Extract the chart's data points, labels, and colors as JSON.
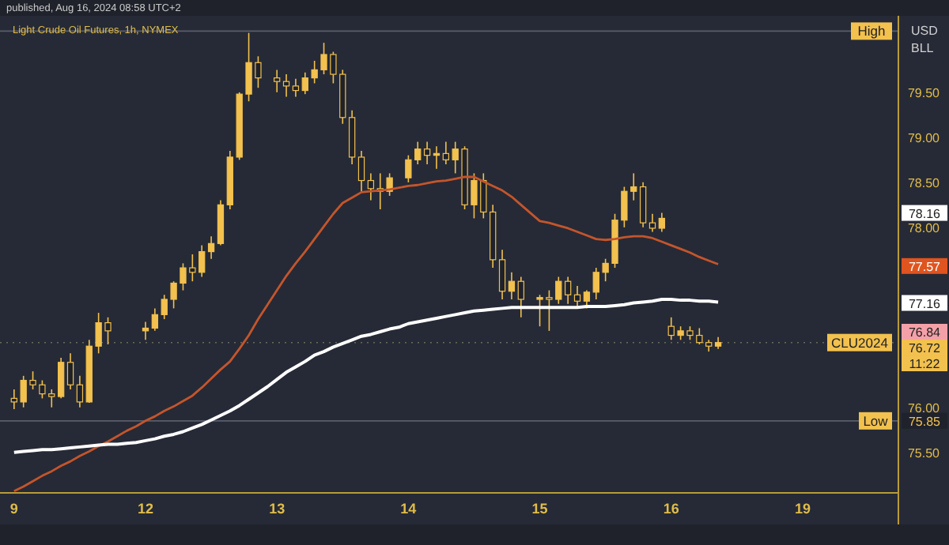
{
  "chart_data": {
    "type": "candlestick",
    "title": "Light Crude Oil Futures, 1h, NYMEX",
    "annotations": [
      "published, Aug 16, 2024 08:58 UTC+2",
      "USD",
      "BLL",
      {
        "text": "78.16",
        "y": 78.16
      },
      {
        "text": "77.57",
        "y": 77.57
      },
      {
        "text": "77.16",
        "y": 77.16
      },
      {
        "text": "76.84",
        "y": 76.84
      },
      "76.72",
      "11:22",
      {
        "text": "75.85",
        "y": 75.85
      }
    ],
    "categories": [
      "9",
      null,
      null,
      null,
      null,
      null,
      null,
      null,
      null,
      null,
      null,
      null,
      null,
      null,
      "12",
      null,
      null,
      null,
      null,
      null,
      null,
      null,
      null,
      null,
      null,
      null,
      null,
      null,
      "13",
      null,
      null,
      null,
      null,
      null,
      null,
      null,
      null,
      null,
      null,
      null,
      null,
      null,
      "14",
      null,
      null,
      null,
      null,
      null,
      null,
      null,
      null,
      null,
      null,
      null,
      null,
      null,
      "15",
      null,
      null,
      null,
      null,
      null,
      null,
      null,
      null,
      null,
      null,
      null,
      null,
      null,
      "16",
      null,
      null,
      null,
      null,
      null,
      null,
      null,
      null,
      null,
      null,
      null,
      null,
      null,
      "19",
      null,
      null,
      null,
      null,
      null,
      null,
      null,
      null,
      null,
      null
    ],
    "ylim": [
      75.05,
      80.35
    ],
    "yticks": [
      {
        "value": 75.5,
        "label": "75.50"
      },
      {
        "value": 76,
        "label": "76.00"
      },
      {
        "value": 78,
        "label": "78.00"
      },
      {
        "value": 78.5,
        "label": "78.50"
      },
      {
        "value": 79,
        "label": "79.00"
      },
      {
        "value": 79.5,
        "label": "79.50"
      }
    ],
    "ref_lines": [
      {
        "axis": "y",
        "value": 80.18,
        "label": "High",
        "color": "#5a5e6a"
      },
      {
        "axis": "y",
        "value": 75.85,
        "label": "Low",
        "color": "#5a5e6a"
      },
      {
        "axis": "y",
        "value": 76.72,
        "label": "CLU2024",
        "color": "#6a6a5a",
        "line_style": "dotted"
      }
    ],
    "series": [
      {
        "color": "#f2c14e",
        "ohlc": [
          [
            76.1,
            76.2,
            75.98,
            76.06
          ],
          [
            76.06,
            76.35,
            76.0,
            76.3
          ],
          [
            76.3,
            76.4,
            76.2,
            76.25
          ],
          [
            76.25,
            76.3,
            76.1,
            76.15
          ],
          [
            76.15,
            76.2,
            76.0,
            76.12
          ],
          [
            76.12,
            76.55,
            76.1,
            76.5
          ],
          [
            76.5,
            76.6,
            76.2,
            76.25
          ],
          [
            76.25,
            76.35,
            76.0,
            76.06
          ],
          [
            76.06,
            76.75,
            76.05,
            76.68
          ],
          [
            76.68,
            77.05,
            76.6,
            76.94
          ],
          [
            76.94,
            77.0,
            76.7,
            76.85
          ],
          null,
          null,
          null,
          [
            76.85,
            76.95,
            76.75,
            76.88
          ],
          [
            76.88,
            77.1,
            76.85,
            77.03
          ],
          [
            77.03,
            77.25,
            76.98,
            77.2
          ],
          [
            77.2,
            77.4,
            77.1,
            77.38
          ],
          [
            77.38,
            77.6,
            77.3,
            77.55
          ],
          [
            77.55,
            77.7,
            77.4,
            77.5
          ],
          [
            77.5,
            77.8,
            77.45,
            77.73
          ],
          [
            77.73,
            77.9,
            77.65,
            77.82
          ],
          [
            77.82,
            78.3,
            77.8,
            78.25
          ],
          [
            78.25,
            78.85,
            78.2,
            78.78
          ],
          [
            78.78,
            79.5,
            78.75,
            79.48
          ],
          [
            79.48,
            80.16,
            79.4,
            79.83
          ],
          [
            79.83,
            79.9,
            79.55,
            79.66
          ],
          null,
          [
            79.66,
            79.75,
            79.5,
            79.62
          ],
          [
            79.62,
            79.7,
            79.45,
            79.57
          ],
          [
            79.57,
            79.65,
            79.45,
            79.52
          ],
          [
            79.52,
            79.72,
            79.48,
            79.66
          ],
          [
            79.66,
            79.85,
            79.6,
            79.75
          ],
          [
            79.75,
            80.05,
            79.7,
            79.92
          ],
          [
            79.92,
            79.95,
            79.6,
            79.7
          ],
          [
            79.7,
            79.75,
            79.15,
            79.22
          ],
          [
            79.22,
            79.3,
            78.7,
            78.78
          ],
          [
            78.78,
            78.85,
            78.4,
            78.52
          ],
          [
            78.52,
            78.6,
            78.3,
            78.43
          ],
          [
            78.43,
            78.6,
            78.2,
            78.4
          ],
          [
            78.4,
            78.6,
            78.35,
            78.55
          ],
          null,
          [
            78.55,
            78.8,
            78.5,
            78.75
          ],
          [
            78.75,
            78.95,
            78.7,
            78.87
          ],
          [
            78.87,
            78.95,
            78.7,
            78.8
          ],
          [
            78.8,
            78.9,
            78.65,
            78.82
          ],
          [
            78.82,
            78.95,
            78.7,
            78.75
          ],
          [
            78.75,
            78.95,
            78.6,
            78.87
          ],
          [
            78.87,
            78.9,
            78.2,
            78.25
          ],
          [
            78.25,
            78.6,
            78.1,
            78.52
          ],
          [
            78.52,
            78.6,
            78.1,
            78.17
          ],
          [
            78.17,
            78.25,
            77.55,
            77.64
          ],
          [
            77.64,
            77.75,
            77.2,
            77.29
          ],
          [
            77.29,
            77.5,
            77.2,
            77.4
          ],
          [
            77.4,
            77.45,
            77.0,
            77.2
          ],
          null,
          [
            77.2,
            77.25,
            76.9,
            77.22
          ],
          [
            77.22,
            77.3,
            76.85,
            77.2
          ],
          [
            77.2,
            77.45,
            77.15,
            77.4
          ],
          [
            77.4,
            77.45,
            77.15,
            77.25
          ],
          [
            77.25,
            77.35,
            77.1,
            77.18
          ],
          [
            77.18,
            77.3,
            77.1,
            77.28
          ],
          [
            77.28,
            77.55,
            77.2,
            77.5
          ],
          [
            77.5,
            77.65,
            77.4,
            77.6
          ],
          [
            77.6,
            78.15,
            77.55,
            78.08
          ],
          [
            78.08,
            78.45,
            78.0,
            78.4
          ],
          [
            78.4,
            78.6,
            78.3,
            78.45
          ],
          [
            78.45,
            78.5,
            78.0,
            78.05
          ],
          [
            78.05,
            78.15,
            77.95,
            77.99
          ],
          [
            77.99,
            78.16,
            77.95,
            78.1
          ],
          [
            76.9,
            77.0,
            76.75,
            76.8
          ],
          [
            76.8,
            76.9,
            76.75,
            76.85
          ],
          [
            76.85,
            76.9,
            76.75,
            76.8
          ],
          [
            76.8,
            76.88,
            76.7,
            76.72
          ],
          [
            76.72,
            76.75,
            76.62,
            76.68
          ],
          [
            76.68,
            76.78,
            76.65,
            76.72
          ],
          null,
          null,
          null,
          null,
          null,
          null,
          null,
          null,
          null,
          null,
          null,
          null,
          null,
          null,
          null,
          null,
          null,
          null,
          null
        ]
      },
      {
        "type": "line",
        "color": "#c4552c",
        "values": [
          75.07,
          75.12,
          75.18,
          75.24,
          75.29,
          75.35,
          75.4,
          75.46,
          75.51,
          75.57,
          75.62,
          75.68,
          75.74,
          75.79,
          75.85,
          75.9,
          75.96,
          76.01,
          76.07,
          76.13,
          76.22,
          76.32,
          76.42,
          76.51,
          76.65,
          76.8,
          76.98,
          77.14,
          77.3,
          77.46,
          77.6,
          77.73,
          77.87,
          78.01,
          78.15,
          78.27,
          78.33,
          78.39,
          78.4,
          78.41,
          78.42,
          78.44,
          78.46,
          78.47,
          78.49,
          78.51,
          78.52,
          78.54,
          78.56,
          78.56,
          78.51,
          78.46,
          78.41,
          78.34,
          78.25,
          78.16,
          78.07,
          78.05,
          78.02,
          77.99,
          77.95,
          77.91,
          77.87,
          77.86,
          77.87,
          77.89,
          77.9,
          77.9,
          77.88,
          77.84,
          77.8,
          77.76,
          77.72,
          77.67,
          77.63,
          77.59,
          null,
          null,
          null,
          null,
          null,
          null,
          null,
          null,
          null,
          null,
          null,
          null,
          null,
          null,
          null,
          null,
          null,
          null,
          null
        ]
      },
      {
        "type": "line",
        "color": "#ffffff",
        "values": [
          75.5,
          75.51,
          75.52,
          75.53,
          75.53,
          75.54,
          75.55,
          75.56,
          75.57,
          75.58,
          75.59,
          75.59,
          75.6,
          75.61,
          75.63,
          75.65,
          75.68,
          75.7,
          75.73,
          75.77,
          75.81,
          75.86,
          75.91,
          75.96,
          76.02,
          76.09,
          76.16,
          76.23,
          76.31,
          76.39,
          76.45,
          76.51,
          76.58,
          76.62,
          76.67,
          76.71,
          76.75,
          76.79,
          76.81,
          76.84,
          76.87,
          76.89,
          76.93,
          76.95,
          76.97,
          76.99,
          77.01,
          77.03,
          77.05,
          77.07,
          77.08,
          77.09,
          77.1,
          77.11,
          77.11,
          77.11,
          77.11,
          77.11,
          77.11,
          77.11,
          77.11,
          77.12,
          77.12,
          77.12,
          77.13,
          77.14,
          77.16,
          77.17,
          77.18,
          77.2,
          77.2,
          77.19,
          77.19,
          77.18,
          77.18,
          77.17,
          null,
          null,
          null,
          null,
          null,
          null,
          null,
          null,
          null,
          null,
          null,
          null,
          null,
          null,
          null,
          null,
          null,
          null,
          null
        ]
      }
    ],
    "grid": false
  }
}
